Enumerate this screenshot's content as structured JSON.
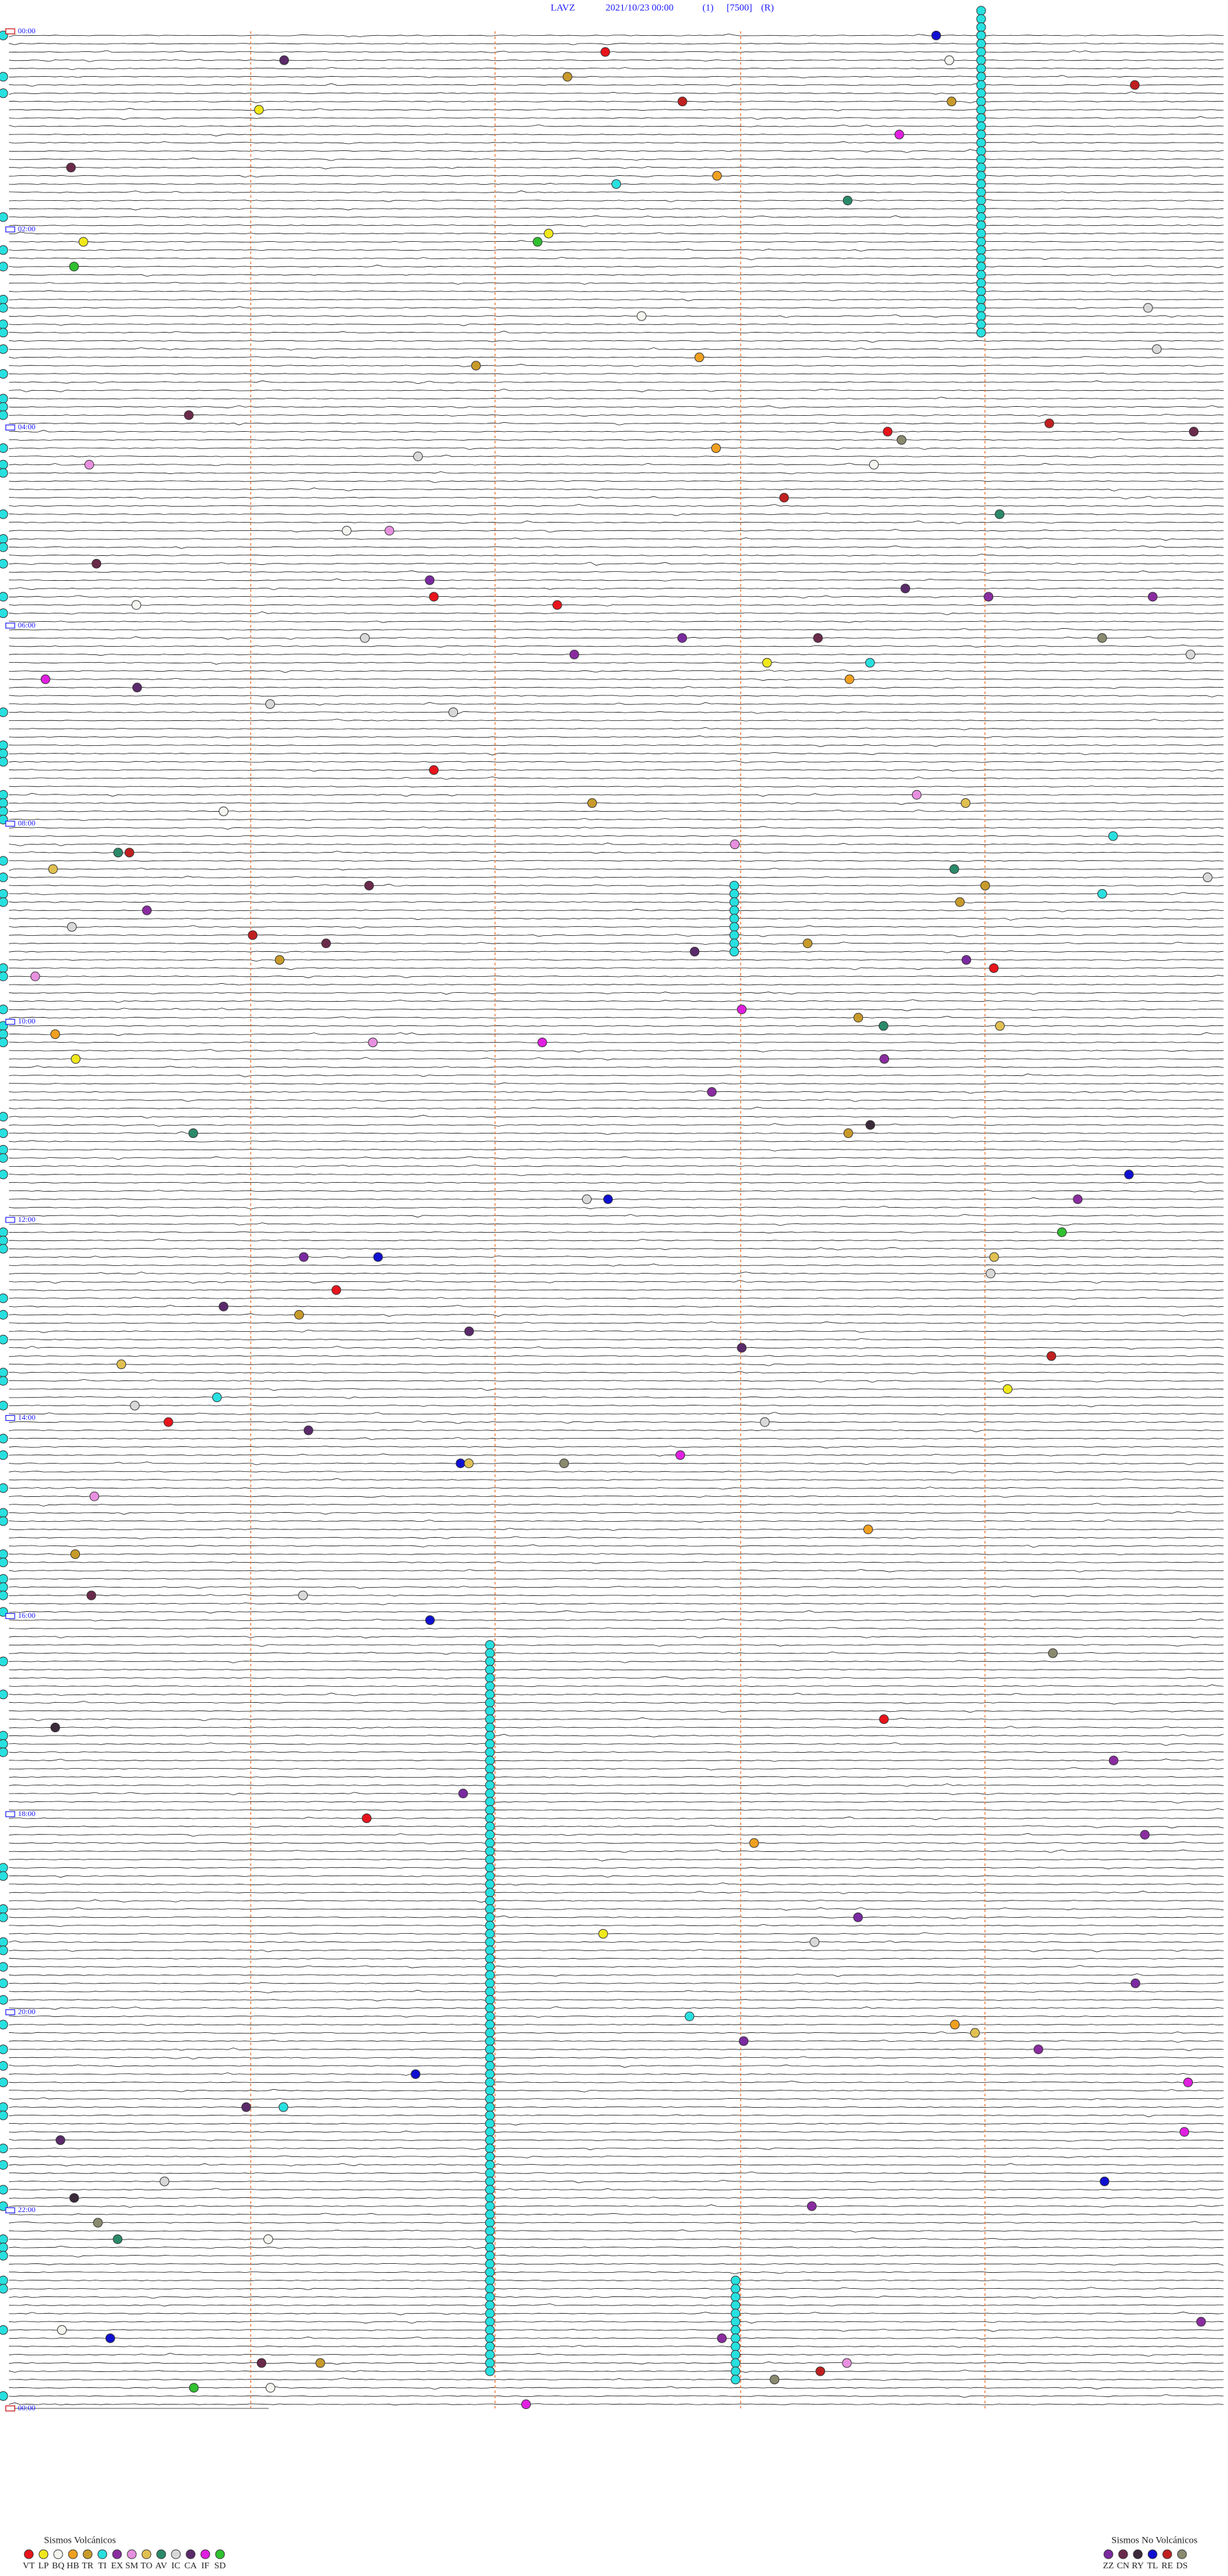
{
  "header": {
    "station": "LAVZ",
    "datetime": "2021/10/23 00:00",
    "channel": "(1)",
    "scale": "[7500]",
    "mode": "(R)"
  },
  "time_labels": [
    "00:00",
    "02:00",
    "04:00",
    "06:00",
    "08:00",
    "10:00",
    "12:00",
    "14:00",
    "16:00",
    "18:00",
    "20:00",
    "22:00",
    "00:00"
  ],
  "legend": {
    "volcanic": {
      "title": "Sismos Volcánicos",
      "items": [
        {
          "label": "VT",
          "color": "#e8141c"
        },
        {
          "label": "LP",
          "color": "#f0e81c"
        },
        {
          "label": "BQ",
          "color": "#f5f5f0"
        },
        {
          "label": "HB",
          "color": "#f0a020"
        },
        {
          "label": "TR",
          "color": "#c89a2a"
        },
        {
          "label": "TI",
          "color": "#28e0e0"
        },
        {
          "label": "EX",
          "color": "#8a2ca0"
        },
        {
          "label": "SM",
          "color": "#e890e0"
        },
        {
          "label": "TO",
          "color": "#e0c050"
        },
        {
          "label": "AV",
          "color": "#2a8a6a"
        },
        {
          "label": "IC",
          "color": "#d8d8d8"
        },
        {
          "label": "CA",
          "color": "#5a2a6a"
        },
        {
          "label": "IF",
          "color": "#e020e0"
        },
        {
          "label": "SD",
          "color": "#30c030"
        }
      ]
    },
    "non_volcanic": {
      "title": "Sismos No Volcánicos",
      "items": [
        {
          "label": "ZZ",
          "color": "#7a2aa0"
        },
        {
          "label": "CN",
          "color": "#6a2a4a"
        },
        {
          "label": "RY",
          "color": "#3a2a3a"
        },
        {
          "label": "TL",
          "color": "#1010d0"
        },
        {
          "label": "RE",
          "color": "#c02020"
        },
        {
          "label": "DS",
          "color": "#8a8a70"
        }
      ]
    }
  }
}
